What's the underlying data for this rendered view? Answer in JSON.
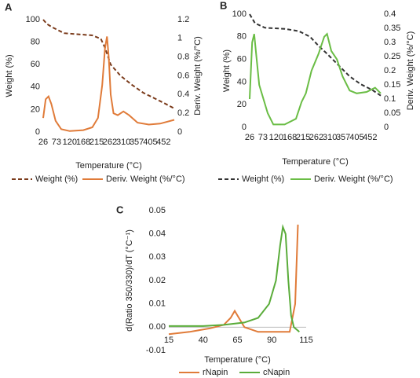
{
  "chart_data": [
    {
      "type": "line",
      "panel": "A",
      "x_label": "Temperature (°C)",
      "y_label": "Weight (%)",
      "y2_label": "Deriv. Weight (%/°C)",
      "xlim": [
        26,
        490
      ],
      "xticks": [
        26,
        73,
        120,
        168,
        215,
        262,
        310,
        357,
        405,
        452
      ],
      "ylim": [
        0,
        100
      ],
      "yticks": [
        0,
        20,
        40,
        60,
        80,
        100
      ],
      "y2lim": [
        0,
        1.2
      ],
      "y2ticks": [
        0,
        0.2,
        0.4,
        0.6,
        0.8,
        1,
        1.2
      ],
      "series": [
        {
          "name": "Weight (%)",
          "color": "#7a3a1a",
          "style": "dashed",
          "x": [
            26,
            40,
            60,
            100,
            150,
            200,
            230,
            245,
            265,
            300,
            340,
            380,
            420,
            460,
            490
          ],
          "values": [
            100,
            96,
            93,
            88,
            87,
            86,
            83,
            75,
            60,
            50,
            42,
            35,
            30,
            25,
            21
          ]
        },
        {
          "name": "Deriv. Weight (%/°C)",
          "color": "#e07b39",
          "style": "solid",
          "axis": "y2",
          "x": [
            26,
            35,
            45,
            55,
            70,
            90,
            120,
            168,
            200,
            220,
            235,
            245,
            252,
            258,
            265,
            275,
            290,
            310,
            330,
            360,
            400,
            440,
            490
          ],
          "values": [
            0.15,
            0.35,
            0.38,
            0.3,
            0.12,
            0.03,
            0.01,
            0.02,
            0.05,
            0.15,
            0.5,
            0.9,
            1.02,
            0.8,
            0.4,
            0.2,
            0.18,
            0.22,
            0.18,
            0.1,
            0.08,
            0.09,
            0.13
          ]
        }
      ]
    },
    {
      "type": "line",
      "panel": "B",
      "x_label": "Temperature (°C)",
      "y_label": "Weight (%)",
      "y2_label": "Deriv. Weight (%/°C)",
      "xlim": [
        26,
        490
      ],
      "xticks": [
        26,
        73,
        120,
        168,
        215,
        262,
        310,
        357,
        405,
        452
      ],
      "ylim": [
        0,
        100
      ],
      "yticks": [
        0,
        20,
        40,
        60,
        80,
        100
      ],
      "y2lim": [
        0,
        0.4
      ],
      "y2ticks": [
        0,
        0.05,
        0.1,
        0.15,
        0.2,
        0.25,
        0.3,
        0.35,
        0.4
      ],
      "series": [
        {
          "name": "Weight (%)",
          "color": "#333333",
          "style": "dashed",
          "x": [
            26,
            45,
            80,
            150,
            200,
            240,
            270,
            300,
            340,
            380,
            420,
            460,
            490
          ],
          "values": [
            100,
            92,
            88,
            87,
            85,
            80,
            72,
            65,
            55,
            45,
            38,
            33,
            28
          ]
        },
        {
          "name": "Deriv. Weight (%/°C)",
          "color": "#6abd45",
          "style": "solid",
          "axis": "y2",
          "x": [
            26,
            35,
            42,
            50,
            60,
            75,
            90,
            110,
            150,
            190,
            210,
            225,
            245,
            270,
            290,
            300,
            315,
            335,
            355,
            380,
            405,
            440,
            470,
            490
          ],
          "values": [
            0.1,
            0.3,
            0.33,
            0.25,
            0.15,
            0.1,
            0.05,
            0.01,
            0.01,
            0.03,
            0.09,
            0.12,
            0.2,
            0.26,
            0.32,
            0.33,
            0.27,
            0.24,
            0.18,
            0.13,
            0.12,
            0.125,
            0.14,
            0.12
          ]
        }
      ]
    },
    {
      "type": "line",
      "panel": "C",
      "x_label": "Temperature (°C)",
      "y_label": "d(Ratio 350/330)/dT (°C⁻¹)",
      "xlim": [
        15,
        115
      ],
      "xticks": [
        15,
        40,
        65,
        90,
        115
      ],
      "ylim": [
        -0.01,
        0.05
      ],
      "yticks": [
        -0.01,
        {
          "value": 0,
          "label": "0.00"
        },
        0.01,
        0.02,
        0.03,
        0.04,
        0.05
      ],
      "series": [
        {
          "name": "rNapin",
          "color": "#e07b39",
          "style": "solid",
          "x": [
            15,
            30,
            45,
            55,
            60,
            63,
            66,
            70,
            80,
            95,
            103,
            107,
            109
          ],
          "values": [
            -0.003,
            -0.002,
            -0.0005,
            0.001,
            0.004,
            0.007,
            0.004,
            0.0,
            -0.002,
            -0.002,
            -0.002,
            0.01,
            0.044
          ]
        },
        {
          "name": "cNapin",
          "color": "#5aac3a",
          "style": "solid",
          "x": [
            15,
            40,
            55,
            70,
            80,
            88,
            93,
            96,
            98,
            100,
            102,
            104,
            106,
            110
          ],
          "values": [
            0.0005,
            0.0005,
            0.001,
            0.002,
            0.004,
            0.01,
            0.02,
            0.035,
            0.043,
            0.04,
            0.02,
            0.005,
            0.0,
            -0.002
          ]
        }
      ]
    }
  ]
}
